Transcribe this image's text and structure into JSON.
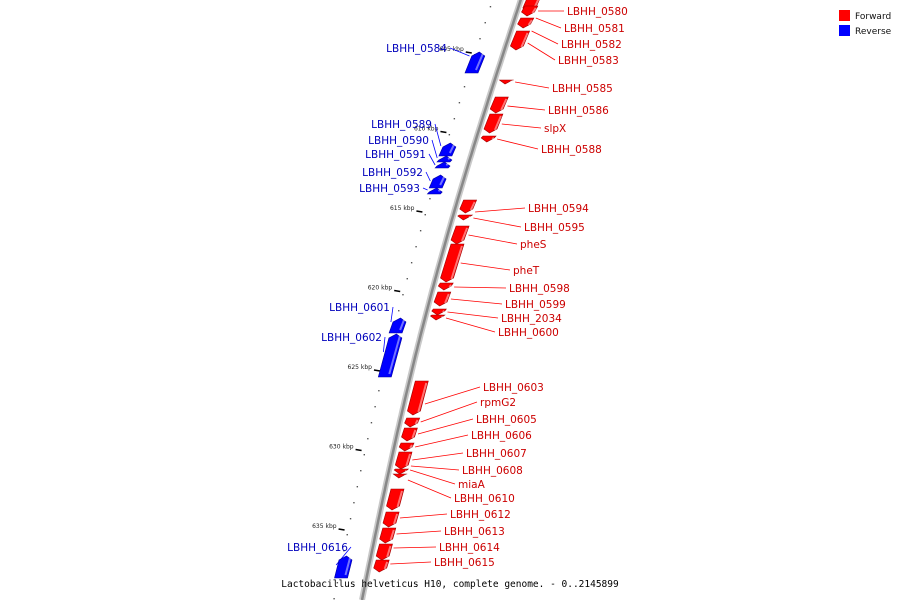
{
  "caption": "Lactobacillus helveticus H10, complete genome. - 0..2145899",
  "legend": [
    {
      "label": "Forward",
      "color": "#ff0000"
    },
    {
      "label": "Reverse",
      "color": "#0000ff"
    }
  ],
  "colors": {
    "forward": "#ff0000",
    "reverse": "#0000ff",
    "backbone": "#888888"
  },
  "ticks": [
    {
      "label": "605 kbp",
      "kbp": 605
    },
    {
      "label": "610 kbp",
      "kbp": 610
    },
    {
      "label": "615 kbp",
      "kbp": 615
    },
    {
      "label": "620 kbp",
      "kbp": 620
    },
    {
      "label": "625 kbp",
      "kbp": 625
    },
    {
      "label": "630 kbp",
      "kbp": 630
    },
    {
      "label": "635 kbp",
      "kbp": 635
    }
  ],
  "genes": [
    {
      "name": "LBHH_0580",
      "strand": "forward"
    },
    {
      "name": "LBHH_0581",
      "strand": "forward"
    },
    {
      "name": "LBHH_0582",
      "strand": "forward"
    },
    {
      "name": "LBHH_0583",
      "strand": "forward"
    },
    {
      "name": "LBHH_0584",
      "strand": "reverse"
    },
    {
      "name": "LBHH_0585",
      "strand": "forward"
    },
    {
      "name": "LBHH_0586",
      "strand": "forward"
    },
    {
      "name": "slpX",
      "strand": "forward"
    },
    {
      "name": "LBHH_0588",
      "strand": "forward"
    },
    {
      "name": "LBHH_0589",
      "strand": "reverse"
    },
    {
      "name": "LBHH_0590",
      "strand": "reverse"
    },
    {
      "name": "LBHH_0591",
      "strand": "reverse"
    },
    {
      "name": "LBHH_0592",
      "strand": "reverse"
    },
    {
      "name": "LBHH_0593",
      "strand": "reverse"
    },
    {
      "name": "LBHH_0594",
      "strand": "forward"
    },
    {
      "name": "LBHH_0595",
      "strand": "forward"
    },
    {
      "name": "pheS",
      "strand": "forward"
    },
    {
      "name": "pheT",
      "strand": "forward"
    },
    {
      "name": "LBHH_0598",
      "strand": "forward"
    },
    {
      "name": "LBHH_0599",
      "strand": "forward"
    },
    {
      "name": "LBHH_2034",
      "strand": "forward"
    },
    {
      "name": "LBHH_0600",
      "strand": "forward"
    },
    {
      "name": "LBHH_0601",
      "strand": "reverse"
    },
    {
      "name": "LBHH_0602",
      "strand": "reverse"
    },
    {
      "name": "LBHH_0603",
      "strand": "forward"
    },
    {
      "name": "rpmG2",
      "strand": "forward"
    },
    {
      "name": "LBHH_0605",
      "strand": "forward"
    },
    {
      "name": "LBHH_0606",
      "strand": "forward"
    },
    {
      "name": "LBHH_0607",
      "strand": "forward"
    },
    {
      "name": "LBHH_0608",
      "strand": "forward"
    },
    {
      "name": "miaA",
      "strand": "forward"
    },
    {
      "name": "LBHH_0610",
      "strand": "forward"
    },
    {
      "name": "LBHH_0612",
      "strand": "forward"
    },
    {
      "name": "LBHH_0613",
      "strand": "forward"
    },
    {
      "name": "LBHH_0614",
      "strand": "forward"
    },
    {
      "name": "LBHH_0615",
      "strand": "forward"
    },
    {
      "name": "LBHH_0616",
      "strand": "reverse"
    }
  ]
}
